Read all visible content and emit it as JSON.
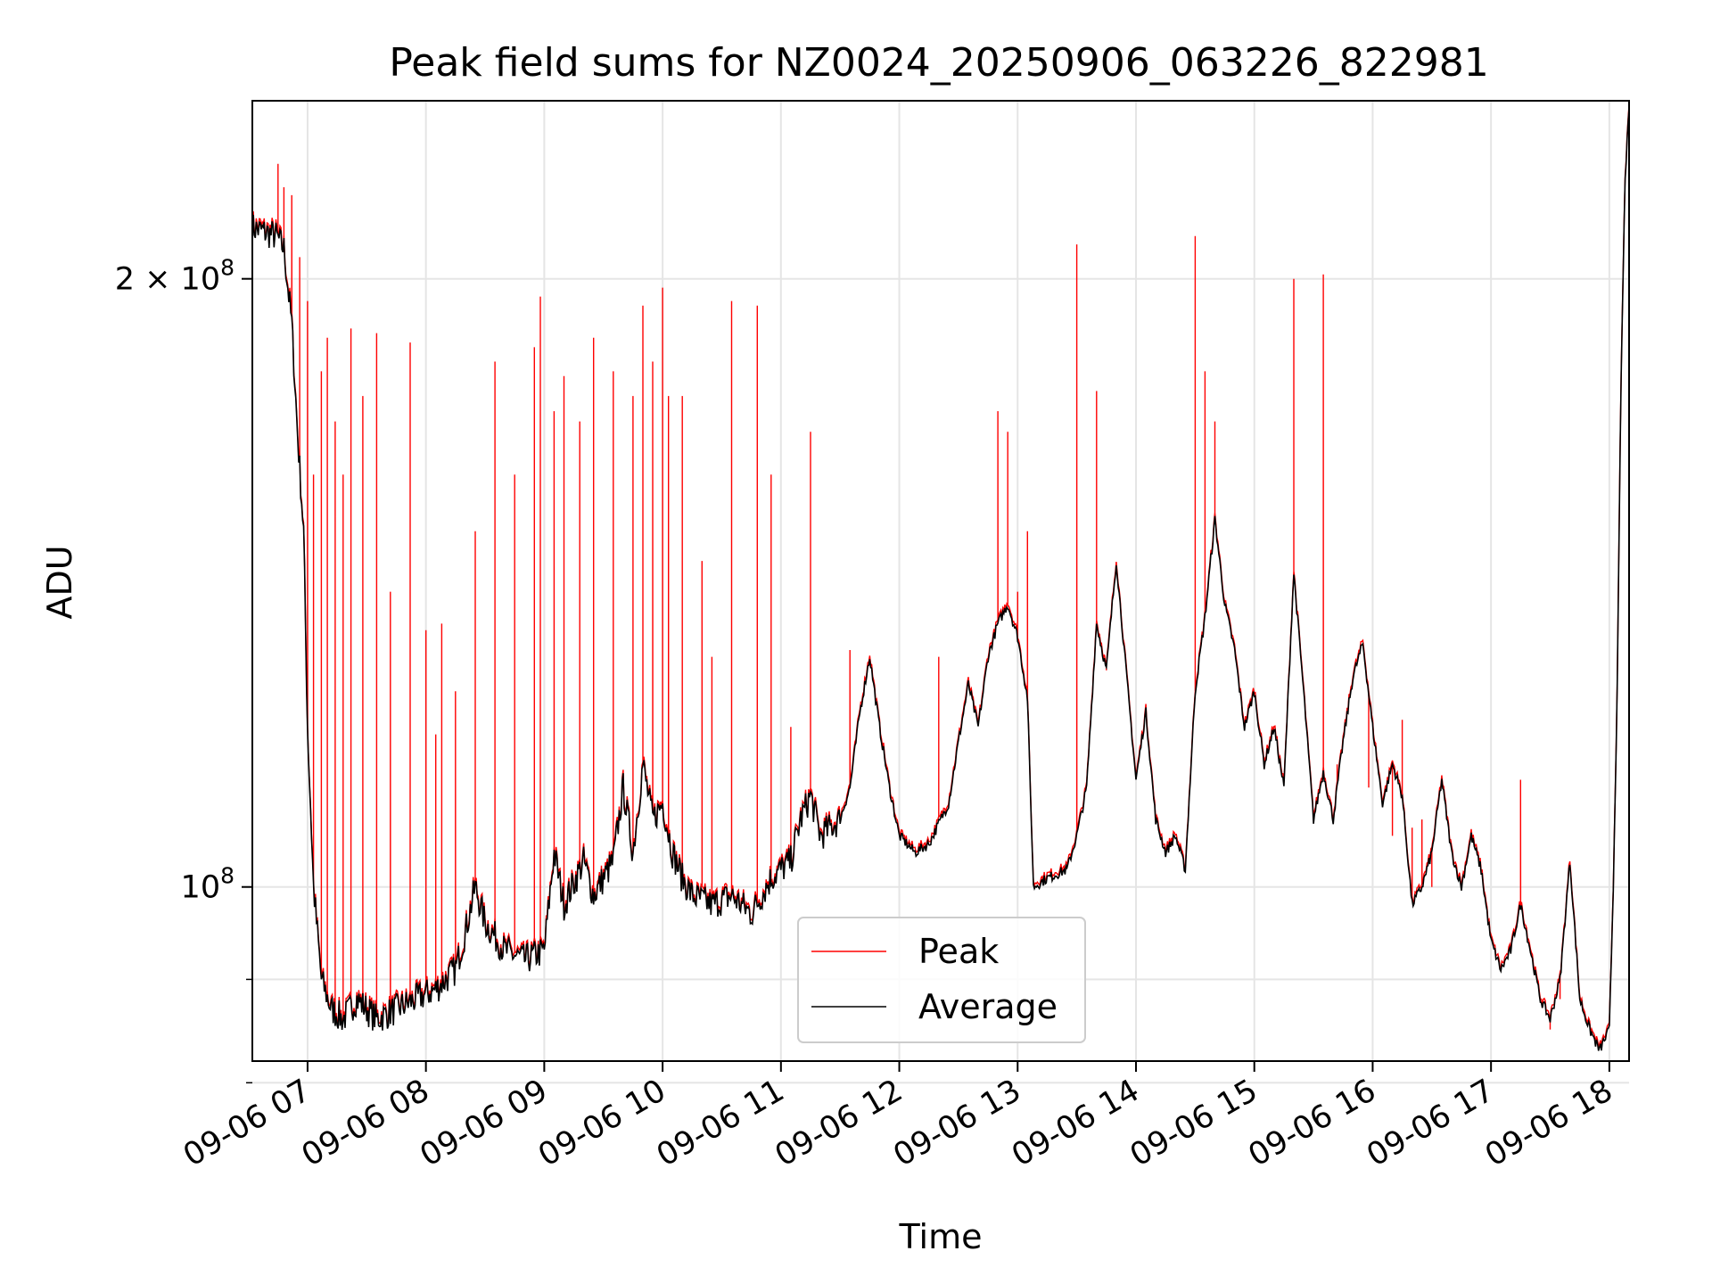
{
  "chart_data": {
    "type": "line",
    "title": "Peak field sums for NZ0024_20250906_063226_822981",
    "xlabel": "Time",
    "ylabel": "ADU",
    "yscale": "log",
    "ylim": [
      82000000,
      245000000
    ],
    "xlim": [
      "09-06 06:32",
      "09-06 18:10"
    ],
    "grid": true,
    "legend_position": "lower-center",
    "x_ticks": [
      "09-06 07",
      "09-06 08",
      "09-06 09",
      "09-06 10",
      "09-06 11",
      "09-06 12",
      "09-06 13",
      "09-06 14",
      "09-06 15",
      "09-06 16",
      "09-06 17",
      "09-06 18"
    ],
    "y_ticks": [
      {
        "value": 200000000,
        "label_base": "2 × 10",
        "label_exp": "8"
      },
      {
        "value": 100000000,
        "label_base": "10",
        "label_exp": "8"
      }
    ],
    "y_minor_ticks": [
      90000000,
      80000000
    ],
    "series": [
      {
        "name": "Average",
        "color": "#000000",
        "points": [
          [
            "06:32",
            212000000
          ],
          [
            "06:38",
            211000000
          ],
          [
            "06:44",
            210000000
          ],
          [
            "06:48",
            207000000
          ],
          [
            "06:52",
            190000000
          ],
          [
            "06:55",
            167000000
          ],
          [
            "06:58",
            150000000
          ],
          [
            "07:00",
            120000000
          ],
          [
            "07:03",
            100000000
          ],
          [
            "07:07",
            90000000
          ],
          [
            "07:12",
            87000000
          ],
          [
            "07:18",
            86000000
          ],
          [
            "07:25",
            88000000
          ],
          [
            "07:35",
            86000000
          ],
          [
            "07:45",
            87000000
          ],
          [
            "07:55",
            88000000
          ],
          [
            "08:05",
            89000000
          ],
          [
            "08:15",
            91000000
          ],
          [
            "08:20",
            95000000
          ],
          [
            "08:25",
            100000000
          ],
          [
            "08:30",
            96000000
          ],
          [
            "08:40",
            93000000
          ],
          [
            "08:50",
            92000000
          ],
          [
            "09:00",
            93000000
          ],
          [
            "09:05",
            104000000
          ],
          [
            "09:10",
            98000000
          ],
          [
            "09:20",
            103000000
          ],
          [
            "09:25",
            99000000
          ],
          [
            "09:35",
            103000000
          ],
          [
            "09:40",
            112000000
          ],
          [
            "09:45",
            104000000
          ],
          [
            "09:50",
            115000000
          ],
          [
            "09:55",
            108000000
          ],
          [
            "10:00",
            110000000
          ],
          [
            "10:05",
            104000000
          ],
          [
            "10:10",
            101000000
          ],
          [
            "10:15",
            99000000
          ],
          [
            "10:25",
            98000000
          ],
          [
            "10:35",
            99000000
          ],
          [
            "10:45",
            97000000
          ],
          [
            "10:55",
            101000000
          ],
          [
            "11:05",
            103000000
          ],
          [
            "11:10",
            108000000
          ],
          [
            "11:15",
            111000000
          ],
          [
            "11:20",
            106000000
          ],
          [
            "11:30",
            108000000
          ],
          [
            "11:35",
            112000000
          ],
          [
            "11:40",
            122000000
          ],
          [
            "11:45",
            130000000
          ],
          [
            "11:50",
            120000000
          ],
          [
            "11:55",
            112000000
          ],
          [
            "12:00",
            106000000
          ],
          [
            "12:08",
            104000000
          ],
          [
            "12:15",
            105000000
          ],
          [
            "12:25",
            110000000
          ],
          [
            "12:30",
            118000000
          ],
          [
            "12:35",
            126000000
          ],
          [
            "12:40",
            120000000
          ],
          [
            "12:45",
            130000000
          ],
          [
            "12:50",
            135000000
          ],
          [
            "12:55",
            138000000
          ],
          [
            "13:00",
            133000000
          ],
          [
            "13:05",
            124000000
          ],
          [
            "13:08",
            100000000
          ],
          [
            "13:15",
            101000000
          ],
          [
            "13:25",
            102000000
          ],
          [
            "13:30",
            106000000
          ],
          [
            "13:35",
            112000000
          ],
          [
            "13:40",
            135000000
          ],
          [
            "13:45",
            128000000
          ],
          [
            "13:50",
            145000000
          ],
          [
            "13:55",
            128000000
          ],
          [
            "14:00",
            113000000
          ],
          [
            "14:05",
            122000000
          ],
          [
            "14:10",
            108000000
          ],
          [
            "14:15",
            104000000
          ],
          [
            "14:20",
            106000000
          ],
          [
            "14:25",
            102000000
          ],
          [
            "14:30",
            125000000
          ],
          [
            "14:35",
            136000000
          ],
          [
            "14:40",
            152000000
          ],
          [
            "14:45",
            138000000
          ],
          [
            "14:50",
            131000000
          ],
          [
            "14:55",
            120000000
          ],
          [
            "15:00",
            125000000
          ],
          [
            "15:05",
            115000000
          ],
          [
            "15:10",
            120000000
          ],
          [
            "15:15",
            112000000
          ],
          [
            "15:20",
            143000000
          ],
          [
            "15:25",
            125000000
          ],
          [
            "15:30",
            108000000
          ],
          [
            "15:35",
            114000000
          ],
          [
            "15:40",
            108000000
          ],
          [
            "15:45",
            118000000
          ],
          [
            "15:50",
            127000000
          ],
          [
            "15:55",
            132000000
          ],
          [
            "16:00",
            120000000
          ],
          [
            "16:05",
            110000000
          ],
          [
            "16:10",
            115000000
          ],
          [
            "16:15",
            111000000
          ],
          [
            "16:20",
            98000000
          ],
          [
            "16:25",
            100000000
          ],
          [
            "16:30",
            104000000
          ],
          [
            "16:35",
            113000000
          ],
          [
            "16:40",
            104000000
          ],
          [
            "16:45",
            100000000
          ],
          [
            "16:50",
            106000000
          ],
          [
            "16:55",
            102000000
          ],
          [
            "17:00",
            94000000
          ],
          [
            "17:05",
            91000000
          ],
          [
            "17:10",
            93000000
          ],
          [
            "17:15",
            98000000
          ],
          [
            "17:20",
            93000000
          ],
          [
            "17:25",
            88000000
          ],
          [
            "17:30",
            86000000
          ],
          [
            "17:35",
            90000000
          ],
          [
            "17:40",
            103000000
          ],
          [
            "17:45",
            88000000
          ],
          [
            "17:50",
            85000000
          ],
          [
            "17:55",
            83000000
          ],
          [
            "18:00",
            85000000
          ],
          [
            "18:02",
            100000000
          ],
          [
            "18:04",
            125000000
          ],
          [
            "18:06",
            180000000
          ],
          [
            "18:08",
            225000000
          ],
          [
            "18:10",
            242000000
          ]
        ]
      },
      {
        "name": "Peak",
        "color": "#ff0000",
        "spikes": [
          [
            "06:45",
            228000000
          ],
          [
            "06:48",
            222000000
          ],
          [
            "06:52",
            220000000
          ],
          [
            "06:56",
            205000000
          ],
          [
            "07:00",
            195000000
          ],
          [
            "07:03",
            160000000
          ],
          [
            "07:07",
            180000000
          ],
          [
            "07:10",
            187000000
          ],
          [
            "07:14",
            170000000
          ],
          [
            "07:18",
            160000000
          ],
          [
            "07:22",
            189000000
          ],
          [
            "07:28",
            175000000
          ],
          [
            "07:35",
            188000000
          ],
          [
            "07:42",
            140000000
          ],
          [
            "07:52",
            186000000
          ],
          [
            "08:00",
            134000000
          ],
          [
            "08:05",
            119000000
          ],
          [
            "08:08",
            135000000
          ],
          [
            "08:15",
            125000000
          ],
          [
            "08:25",
            150000000
          ],
          [
            "08:35",
            182000000
          ],
          [
            "08:45",
            160000000
          ],
          [
            "08:55",
            185000000
          ],
          [
            "08:58",
            196000000
          ],
          [
            "09:05",
            172000000
          ],
          [
            "09:10",
            179000000
          ],
          [
            "09:18",
            170000000
          ],
          [
            "09:25",
            187000000
          ],
          [
            "09:35",
            180000000
          ],
          [
            "09:45",
            175000000
          ],
          [
            "09:50",
            194000000
          ],
          [
            "09:55",
            182000000
          ],
          [
            "10:00",
            198000000
          ],
          [
            "10:03",
            175000000
          ],
          [
            "10:10",
            175000000
          ],
          [
            "10:20",
            145000000
          ],
          [
            "10:25",
            130000000
          ],
          [
            "10:35",
            195000000
          ],
          [
            "10:48",
            194000000
          ],
          [
            "10:55",
            160000000
          ],
          [
            "11:05",
            120000000
          ],
          [
            "11:15",
            168000000
          ],
          [
            "11:35",
            131000000
          ],
          [
            "12:20",
            130000000
          ],
          [
            "12:50",
            172000000
          ],
          [
            "12:55",
            168000000
          ],
          [
            "13:00",
            140000000
          ],
          [
            "13:05",
            150000000
          ],
          [
            "13:30",
            208000000
          ],
          [
            "13:40",
            176000000
          ],
          [
            "13:45",
            128000000
          ],
          [
            "14:30",
            210000000
          ],
          [
            "14:35",
            180000000
          ],
          [
            "14:40",
            170000000
          ],
          [
            "15:20",
            200000000
          ],
          [
            "15:35",
            201000000
          ],
          [
            "15:42",
            115000000
          ],
          [
            "15:58",
            112000000
          ],
          [
            "16:10",
            106000000
          ],
          [
            "16:15",
            121000000
          ],
          [
            "16:20",
            107000000
          ],
          [
            "16:25",
            108000000
          ],
          [
            "16:30",
            100000000
          ],
          [
            "17:15",
            113000000
          ],
          [
            "17:30",
            85000000
          ],
          [
            "17:35",
            88000000
          ]
        ]
      }
    ]
  }
}
